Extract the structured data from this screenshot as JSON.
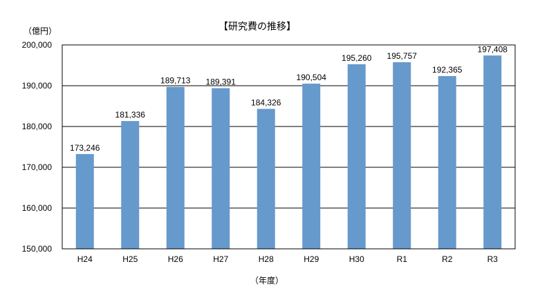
{
  "chart_data": {
    "type": "bar",
    "title": "【研究費の推移】",
    "ylabel": "（億円）",
    "xlabel": "（年度）",
    "categories": [
      "H24",
      "H25",
      "H26",
      "H27",
      "H28",
      "H29",
      "H30",
      "R1",
      "R2",
      "R3"
    ],
    "values": [
      173246,
      181336,
      189713,
      189391,
      184326,
      190504,
      195260,
      195757,
      192365,
      197408
    ],
    "value_labels": [
      "173,246",
      "181,336",
      "189,713",
      "189,391",
      "184,326",
      "190,504",
      "195,260",
      "195,757",
      "192,365",
      "197,408"
    ],
    "ylim": [
      150000,
      200000
    ],
    "yticks": [
      150000,
      160000,
      170000,
      180000,
      190000,
      200000
    ],
    "ytick_labels": [
      "150,000",
      "160,000",
      "170,000",
      "180,000",
      "190,000",
      "200,000"
    ],
    "grid": true,
    "legend": "none",
    "bar_color": "#6699CC"
  }
}
